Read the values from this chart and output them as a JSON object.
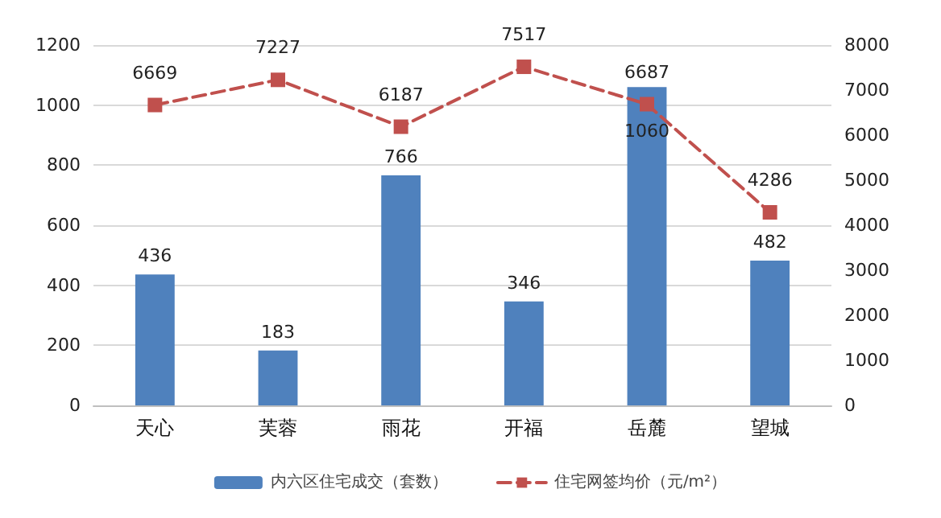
{
  "chart_data": {
    "type": "bar",
    "categories": [
      "天心",
      "芙蓉",
      "雨花",
      "开福",
      "岳麓",
      "望城"
    ],
    "series": [
      {
        "name": "内六区住宅成交（套数）",
        "color": "#4f81bd",
        "values": [
          436,
          183,
          766,
          346,
          1060,
          482
        ]
      },
      {
        "name": "住宅网签均价（元/m²）",
        "type": "line",
        "axis": "y2",
        "color": "#c0504d",
        "values": [
          6669,
          7227,
          6187,
          7517,
          6687,
          4286
        ],
        "marker": "square",
        "line_style": "dashed"
      }
    ],
    "ylim": [
      0,
      1200
    ],
    "yticks": [
      0,
      200,
      400,
      600,
      800,
      1000,
      1200
    ],
    "y2lim": [
      0,
      8000
    ],
    "y2ticks": [
      0,
      1000,
      2000,
      3000,
      4000,
      5000,
      6000,
      7000,
      8000
    ],
    "grid": "y",
    "legend": "bottom",
    "data_labels": true
  }
}
